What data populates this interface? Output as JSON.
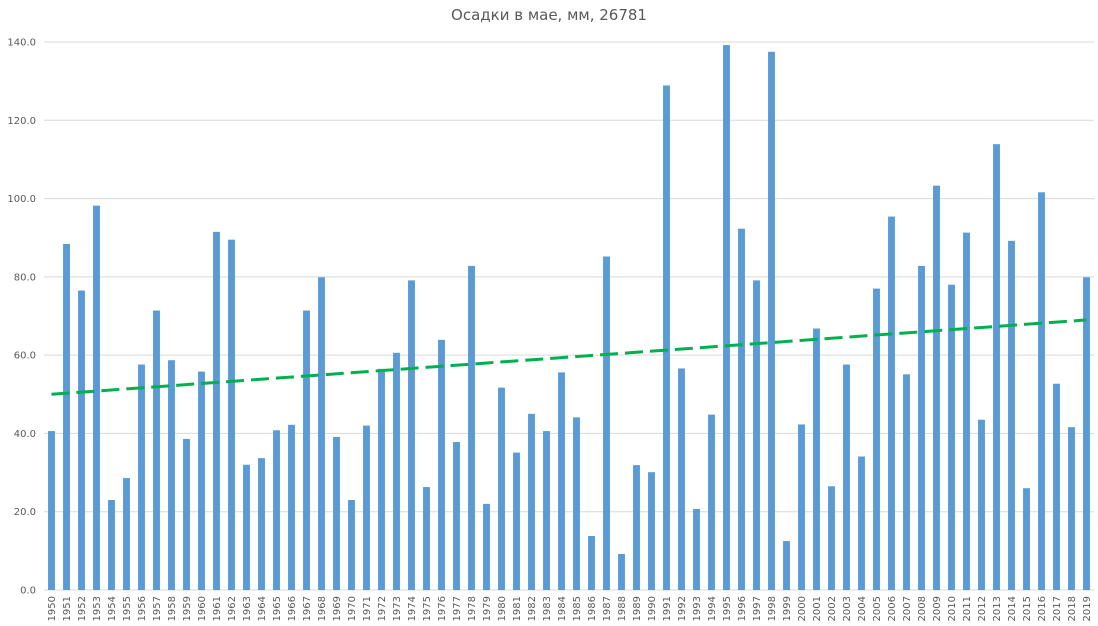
{
  "chart_data": {
    "type": "bar",
    "title": "Осадки в мае, мм, 26781",
    "xlabel": "",
    "ylabel": "",
    "ylim": [
      0,
      140
    ],
    "yticks": [
      "0.0",
      "20.0",
      "40.0",
      "60.0",
      "80.0",
      "100.0",
      "120.0",
      "140.0"
    ],
    "grid": true,
    "categories": [
      "1950",
      "1951",
      "1952",
      "1953",
      "1954",
      "1955",
      "1956",
      "1957",
      "1958",
      "1959",
      "1960",
      "1961",
      "1962",
      "1963",
      "1964",
      "1965",
      "1966",
      "1967",
      "1968",
      "1969",
      "1970",
      "1971",
      "1972",
      "1973",
      "1974",
      "1975",
      "1976",
      "1977",
      "1978",
      "1979",
      "1980",
      "1981",
      "1982",
      "1983",
      "1984",
      "1985",
      "1986",
      "1987",
      "1988",
      "1989",
      "1990",
      "1991",
      "1992",
      "1993",
      "1994",
      "1995",
      "1996",
      "1997",
      "1998",
      "1999",
      "2000",
      "2001",
      "2002",
      "2003",
      "2004",
      "2005",
      "2006",
      "2007",
      "2008",
      "2009",
      "2010",
      "2011",
      "2012",
      "2013",
      "2014",
      "2015",
      "2016",
      "2017",
      "2018",
      "2019"
    ],
    "values": [
      40.6,
      88.4,
      76.5,
      98.2,
      23.0,
      28.6,
      57.6,
      71.4,
      58.7,
      38.6,
      55.8,
      91.5,
      89.5,
      32.0,
      33.7,
      40.8,
      42.2,
      71.4,
      79.9,
      39.1,
      23.0,
      42.0,
      56.5,
      60.6,
      79.1,
      26.3,
      63.9,
      37.8,
      82.8,
      22.0,
      51.7,
      35.1,
      45.0,
      40.6,
      55.6,
      44.1,
      13.8,
      85.2,
      9.2,
      31.9,
      30.1,
      128.9,
      56.6,
      20.7,
      44.8,
      139.2,
      92.3,
      79.1,
      137.5,
      12.5,
      42.3,
      66.8,
      26.5,
      57.6,
      34.1,
      77.0,
      95.4,
      55.1,
      82.8,
      103.3,
      78.0,
      91.3,
      43.5,
      113.9,
      89.2,
      26.0,
      101.6,
      52.7,
      41.6,
      79.9
    ],
    "trendline": {
      "start": 50.0,
      "end": 69.0,
      "style": "dashed"
    },
    "colors": {
      "bar": "#5b9bd5",
      "trend": "#00b050",
      "grid": "#d9d9d9"
    }
  }
}
